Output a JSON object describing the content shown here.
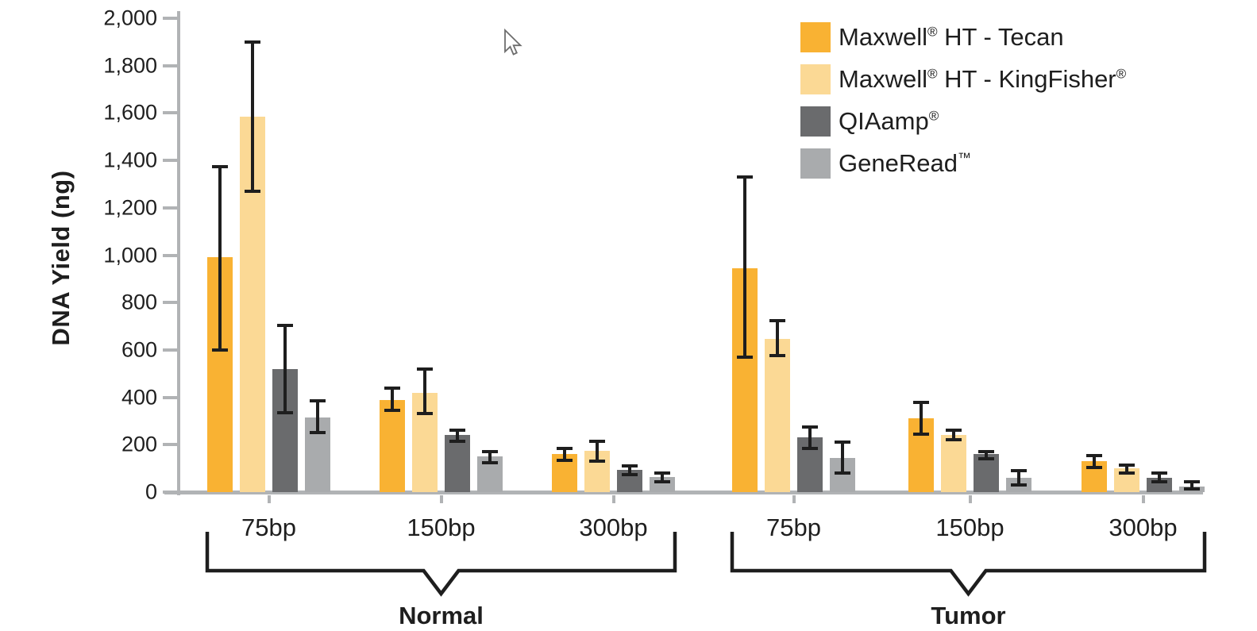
{
  "page": {
    "background": "#FFFFFF"
  },
  "chart_data": {
    "type": "bar",
    "title": "",
    "ylabel": "DNA Yield (ng)",
    "xlabel": "",
    "ylim": [
      0,
      2000
    ],
    "ytick_interval": 200,
    "ytick_labels": [
      "2,000",
      "1,800",
      "1,600",
      "1,400",
      "1,200",
      "1,000",
      "800",
      "600",
      "400",
      "200",
      "0"
    ],
    "grid": false,
    "error_bars": true,
    "legend_position": "top-right",
    "categories": [
      "75bp",
      "150bp",
      "300bp"
    ],
    "series": [
      {
        "name": "Maxwell® HT - Tecan",
        "name_parts": [
          "Maxwell",
          "®",
          " HT - Tecan"
        ],
        "color": "#F9B233"
      },
      {
        "name": "Maxwell® HT - KingFisher®",
        "name_parts": [
          "Maxwell",
          "®",
          " HT - KingFisher",
          "®"
        ],
        "color": "#FBD995"
      },
      {
        "name": "QIAamp®",
        "name_parts": [
          "QIAamp",
          "®"
        ],
        "color": "#6A6B6D"
      },
      {
        "name": "GeneRead™",
        "name_parts": [
          "GeneRead",
          "™"
        ],
        "color": "#A9ABAD"
      }
    ],
    "sections": [
      {
        "label": "Normal",
        "groups": [
          {
            "category": "75bp",
            "values": [
              990,
              1585,
              520,
              315
            ],
            "err_low": [
              600,
              1270,
              335,
              250
            ],
            "err_high": [
              1375,
              1900,
              705,
              385
            ]
          },
          {
            "category": "150bp",
            "values": [
              390,
              420,
              240,
              150
            ],
            "err_low": [
              345,
              330,
              215,
              125
            ],
            "err_high": [
              440,
              520,
              260,
              170
            ]
          },
          {
            "category": "300bp",
            "values": [
              160,
              175,
              95,
              65
            ],
            "err_low": [
              135,
              130,
              75,
              45
            ],
            "err_high": [
              185,
              215,
              110,
              80
            ]
          }
        ]
      },
      {
        "label": "Tumor",
        "groups": [
          {
            "category": "75bp",
            "values": [
              945,
              645,
              230,
              145
            ],
            "err_low": [
              570,
              575,
              185,
              80
            ],
            "err_high": [
              1330,
              725,
              275,
              210
            ]
          },
          {
            "category": "150bp",
            "values": [
              310,
              240,
              160,
              60
            ],
            "err_low": [
              245,
              220,
              140,
              30
            ],
            "err_high": [
              380,
              260,
              170,
              90
            ]
          },
          {
            "category": "300bp",
            "values": [
              130,
              100,
              60,
              25
            ],
            "err_low": [
              105,
              80,
              45,
              12
            ],
            "err_high": [
              155,
              115,
              80,
              45
            ]
          }
        ]
      }
    ],
    "colors": {
      "axis": "#B1B3B5",
      "error_bar": "#1E1E1E",
      "text": "#1E1E1E"
    }
  }
}
